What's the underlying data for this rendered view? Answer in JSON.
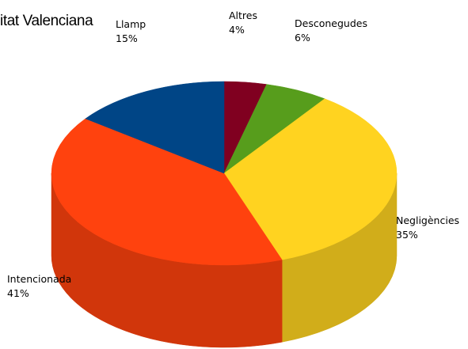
{
  "chart_data": {
    "type": "pie",
    "title": "itat Valenciana",
    "categories": [
      "Altres",
      "Desconegudes",
      "Negligències",
      "Intencionada",
      "Llamp"
    ],
    "values": [
      4,
      6,
      35,
      41,
      15
    ],
    "value_labels": [
      "4%",
      "6%",
      "35%",
      "41%",
      "15%"
    ],
    "colors": [
      "#800020",
      "#579D1C",
      "#FFD320",
      "#FF420E",
      "#004586"
    ],
    "legend": "none",
    "three_d": true
  }
}
